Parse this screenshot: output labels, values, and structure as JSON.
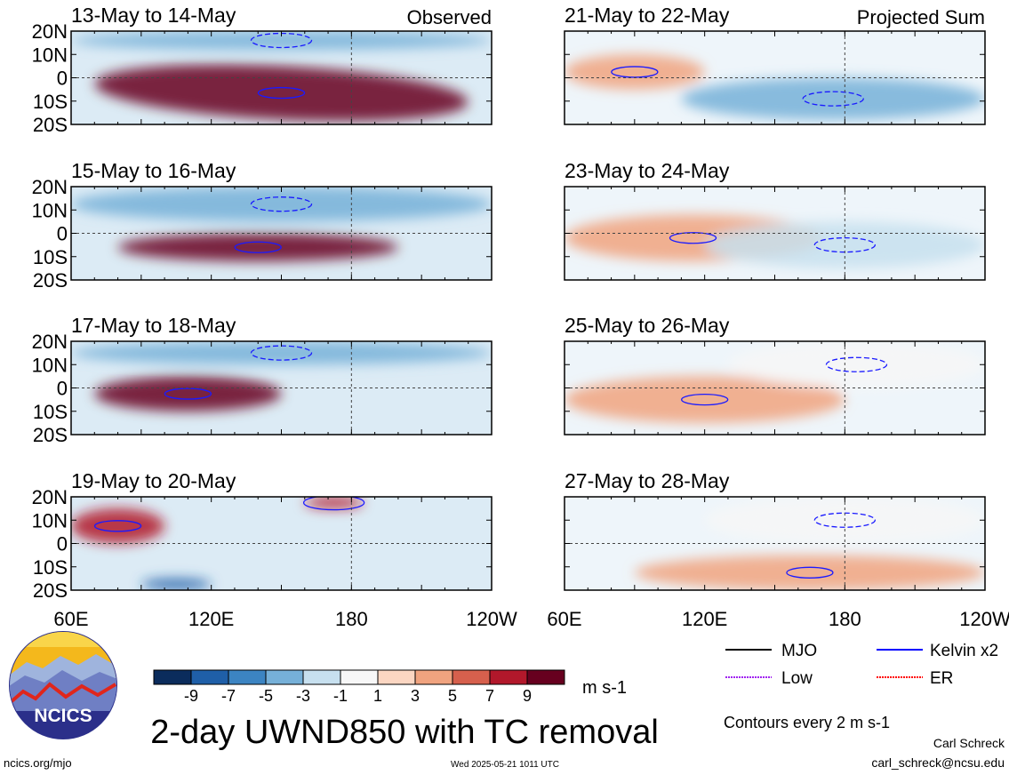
{
  "chart_data": {
    "type": "heatmap",
    "title": "2-day UWND850 with TC removal",
    "variable": "UWND850",
    "units": "m s-1",
    "colorbar": {
      "ticks": [
        "-9",
        "-7",
        "-5",
        "-3",
        "-1",
        "1",
        "3",
        "5",
        "7",
        "9"
      ],
      "colors": [
        "#0b2c5c",
        "#1f5fa8",
        "#3c84c2",
        "#76b0d8",
        "#c7e0ef",
        "#f7f7f7",
        "#fbd6c2",
        "#f0a37f",
        "#d6604d",
        "#b2182b",
        "#67001f"
      ]
    },
    "x_axis": {
      "ticks": [
        "60E",
        "120E",
        "180",
        "120W"
      ],
      "range": [
        60,
        240
      ]
    },
    "y_axis": {
      "ticks": [
        "20N",
        "10N",
        "0",
        "10S",
        "20S"
      ],
      "range": [
        -20,
        20
      ]
    },
    "grid": "dashed reference lines at 0 and 180",
    "columns": [
      {
        "header": "Observed",
        "panels": [
          {
            "title": "13-May to 14-May",
            "features": [
              {
                "sign": "positive",
                "level": 9,
                "lon": [
                  70,
                  230
                ],
                "lat": [
                  5,
                  -18
                ],
                "note": "westerly band along Equator tilting SE"
              },
              {
                "sign": "negative",
                "level": -5,
                "lon": [
                  60,
                  240
                ],
                "lat": [
                  20,
                  12
                ]
              }
            ]
          },
          {
            "title": "15-May to 16-May",
            "features": [
              {
                "sign": "positive",
                "level": 9,
                "lon": [
                  80,
                  200
                ],
                "lat": [
                  0,
                  -12
                ]
              },
              {
                "sign": "negative",
                "level": -5,
                "lon": [
                  60,
                  240
                ],
                "lat": [
                  20,
                  5
                ]
              }
            ]
          },
          {
            "title": "17-May to 18-May",
            "features": [
              {
                "sign": "positive",
                "level": 9,
                "lon": [
                  70,
                  150
                ],
                "lat": [
                  5,
                  -10
                ]
              },
              {
                "sign": "negative",
                "level": -5,
                "lon": [
                  60,
                  240
                ],
                "lat": [
                  20,
                  10
                ]
              }
            ]
          },
          {
            "title": "19-May to 20-May",
            "features": [
              {
                "sign": "positive",
                "level": 7,
                "lon": [
                  60,
                  100
                ],
                "lat": [
                  15,
                  0
                ]
              },
              {
                "sign": "positive",
                "level": 7,
                "lon": [
                  160,
                  185
                ],
                "lat": [
                  20,
                  15
                ]
              },
              {
                "sign": "negative",
                "level": -9,
                "lon": [
                  90,
                  120
                ],
                "lat": [
                  -15,
                  -20
                ]
              }
            ]
          }
        ]
      },
      {
        "header": "Projected Sum",
        "panels": [
          {
            "title": "21-May to 22-May",
            "features": [
              {
                "sign": "positive",
                "level": 3,
                "lon": [
                  60,
                  120
                ],
                "lat": [
                  10,
                  -5
                ]
              },
              {
                "sign": "negative",
                "level": -5,
                "lon": [
                  110,
                  240
                ],
                "lat": [
                  0,
                  -18
                ]
              }
            ]
          },
          {
            "title": "23-May to 24-May",
            "features": [
              {
                "sign": "positive",
                "level": 3,
                "lon": [
                  60,
                  170
                ],
                "lat": [
                  8,
                  -12
                ]
              },
              {
                "sign": "negative",
                "level": -3,
                "lon": [
                  120,
                  240
                ],
                "lat": [
                  5,
                  -15
                ]
              }
            ]
          },
          {
            "title": "25-May to 26-May",
            "features": [
              {
                "sign": "positive",
                "level": 3,
                "lon": [
                  60,
                  180
                ],
                "lat": [
                  5,
                  -15
                ]
              },
              {
                "sign": "negative",
                "level": -1,
                "lon": [
                  130,
                  240
                ],
                "lat": [
                  20,
                  0
                ]
              }
            ]
          },
          {
            "title": "27-May to 28-May",
            "features": [
              {
                "sign": "positive",
                "level": 3,
                "lon": [
                  90,
                  240
                ],
                "lat": [
                  -5,
                  -20
                ]
              },
              {
                "sign": "negative",
                "level": -1,
                "lon": [
                  120,
                  240
                ],
                "lat": [
                  20,
                  0
                ]
              }
            ]
          }
        ]
      }
    ]
  },
  "legend": {
    "items": [
      {
        "label": "MJO",
        "color": "#000000"
      },
      {
        "label": "Kelvin x2",
        "color": "#0000ff"
      },
      {
        "label": "Low",
        "color": "#a020f0"
      },
      {
        "label": "ER",
        "color": "#ff0000"
      }
    ],
    "contour_note": "Contours every 2 m s-1"
  },
  "footer": {
    "logo_text": "NCICS",
    "left_url": "ncics.org/mjo",
    "timestamp": "Wed 2025-05-21 1011 UTC",
    "author": "Carl Schreck",
    "email": "carl_schreck@ncsu.edu"
  }
}
